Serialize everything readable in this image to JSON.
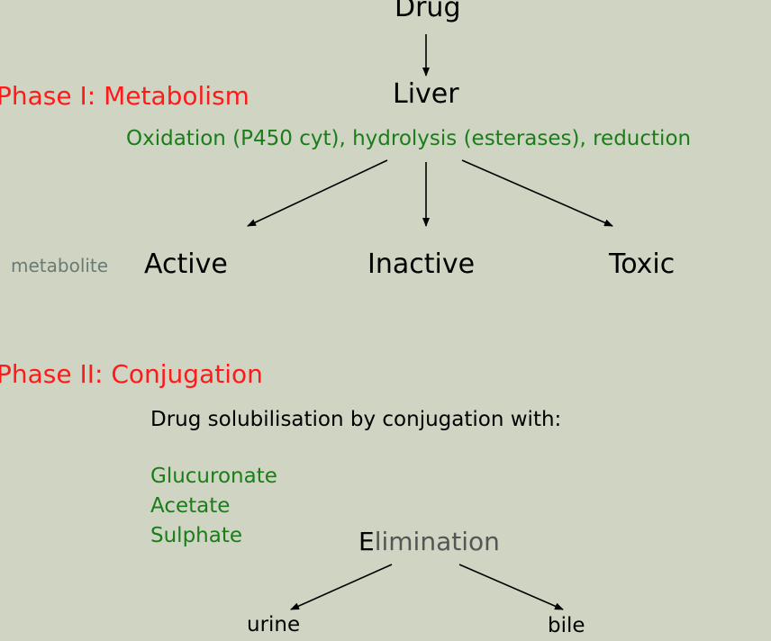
{
  "top_node": "Drug",
  "liver_node": "Liver",
  "phase1": {
    "title": "Phase I: Metabolism",
    "reactions": "Oxidation (P450 cyt), hydrolysis (esterases), reduction",
    "metabolite_label": "metabolite",
    "outcomes": [
      "Active",
      "Inactive",
      "Toxic"
    ]
  },
  "phase2": {
    "title": "Phase II: Conjugation",
    "description": "Drug solubilisation by conjugation with:",
    "conjugates": [
      "Glucuronate",
      "Acetate",
      "Sulphate"
    ]
  },
  "elimination": {
    "initial": "E",
    "rest": "limination",
    "routes": [
      "urine",
      "bile"
    ]
  },
  "colors": {
    "background": "#cfd5c2",
    "phase_title": "#ff1a1a",
    "green_text": "#1a7d1a",
    "gray_text": "#6a7a74"
  }
}
